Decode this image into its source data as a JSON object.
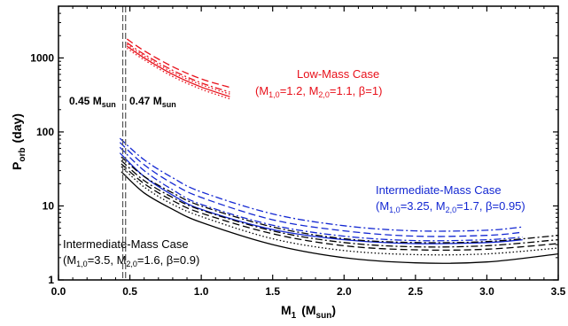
{
  "chart_data": {
    "type": "line",
    "title": "",
    "xlabel": {
      "main": "M",
      "sub": "1",
      "unit_main": "(M",
      "unit_sub": "sun",
      "unit_close": ")"
    },
    "ylabel": {
      "main": "P",
      "sub": "orb",
      "unit": "(day)"
    },
    "xlim": [
      0.0,
      3.5
    ],
    "ylim": [
      1,
      5000
    ],
    "y_scale": "log",
    "x_ticks": [
      "0.0",
      "0.5",
      "1.0",
      "1.5",
      "2.0",
      "2.5",
      "3.0",
      "3.5"
    ],
    "y_ticks": [
      {
        "value": 1,
        "label": "1"
      },
      {
        "value": 10,
        "label": "10"
      },
      {
        "value": 100,
        "label": "100"
      },
      {
        "value": 1000,
        "label": "1000"
      }
    ],
    "vlines": [
      {
        "x": 0.45,
        "label_main": "0.45 M",
        "label_sub": "sun"
      },
      {
        "x": 0.47,
        "label_main": "0.47 M",
        "label_sub": "sun"
      }
    ],
    "groups": [
      {
        "name": "Low-Mass Case",
        "color": "#e8101a",
        "params": [
          "(M",
          "1,0",
          "=1.2, M",
          "2,0",
          "=1.1, β=1)"
        ],
        "series": [
          {
            "dash": "dash",
            "x": [
              0.48,
              0.6,
              0.8,
              1.0,
              1.2
            ],
            "y": [
              1800,
              1250,
              760,
              520,
              400
            ]
          },
          {
            "dash": "dashdot",
            "x": [
              0.48,
              0.6,
              0.8,
              1.0,
              1.2
            ],
            "y": [
              1600,
              1120,
              680,
              460,
              345
            ]
          },
          {
            "dash": "dot",
            "x": [
              0.48,
              0.6,
              0.8,
              1.0,
              1.2
            ],
            "y": [
              1520,
              1060,
              640,
              435,
              325
            ]
          },
          {
            "dash": "solid",
            "x": [
              0.48,
              0.6,
              0.8,
              1.0,
              1.2
            ],
            "y": [
              1440,
              1000,
              600,
              405,
              300
            ]
          },
          {
            "dash": "dot",
            "x": [
              0.48,
              0.6,
              0.8,
              1.0,
              1.2
            ],
            "y": [
              1350,
              940,
              560,
              378,
              280
            ]
          }
        ]
      },
      {
        "name": "Intermediate-Mass Case",
        "color": "#1428d2",
        "params": [
          "(M",
          "1,0",
          "=3.25, M",
          "2,0",
          "=1.7, β=0.95)"
        ],
        "series": [
          {
            "dash": "dashdot",
            "x": [
              0.43,
              0.6,
              0.8,
              1.0,
              1.5,
              2.0,
              2.5,
              3.0,
              3.25
            ],
            "y": [
              82,
              42,
              24,
              15.5,
              7.8,
              5.4,
              4.6,
              4.7,
              5.2
            ]
          },
          {
            "dash": "dash",
            "x": [
              0.43,
              0.6,
              0.8,
              1.0,
              1.5,
              2.0,
              2.5,
              3.0,
              3.25
            ],
            "y": [
              72,
              36,
              20,
              13,
              6.5,
              4.6,
              3.9,
              4.0,
              4.4
            ]
          },
          {
            "dash": "dashdot",
            "x": [
              0.43,
              0.6,
              0.8,
              1.0,
              1.5,
              2.0,
              2.5,
              3.0,
              3.25
            ],
            "y": [
              62,
              30,
              16.5,
              10.5,
              5.5,
              3.9,
              3.4,
              3.5,
              3.8
            ]
          },
          {
            "dash": "solid",
            "x": [
              0.43,
              0.6,
              0.8,
              1.0,
              1.5,
              2.0,
              2.5,
              3.0,
              3.25
            ],
            "y": [
              52,
              25,
              14,
              9.0,
              4.8,
              3.5,
              3.1,
              3.2,
              3.5
            ]
          }
        ]
      },
      {
        "name": "Intermediate-Mass Case",
        "color": "#000000",
        "params": [
          "(M",
          "1,0",
          "=3.5, M",
          "2,0",
          "=1.6, β=0.9)"
        ],
        "series": [
          {
            "dash": "dashdot",
            "x": [
              0.44,
              0.6,
              0.8,
              1.0,
              1.5,
              2.0,
              2.5,
              3.0,
              3.5
            ],
            "y": [
              46,
              25,
              15,
              10,
              5.2,
              3.6,
              3.2,
              3.3,
              4.0
            ]
          },
          {
            "dash": "dashdot",
            "x": [
              0.44,
              0.6,
              0.8,
              1.0,
              1.5,
              2.0,
              2.5,
              3.0,
              3.5
            ],
            "y": [
              41,
              22,
              13,
              8.8,
              4.6,
              3.2,
              2.8,
              2.9,
              3.5
            ]
          },
          {
            "dash": "dash",
            "x": [
              0.44,
              0.6,
              0.8,
              1.0,
              1.5,
              2.0,
              2.5,
              3.0,
              3.5
            ],
            "y": [
              37,
              20,
              11.8,
              8.0,
              4.2,
              2.9,
              2.55,
              2.6,
              3.1
            ]
          },
          {
            "dash": "dot",
            "x": [
              0.44,
              0.6,
              0.8,
              1.0,
              1.5,
              2.0,
              2.5,
              3.0,
              3.5
            ],
            "y": [
              34,
              18,
              10.5,
              7.2,
              3.6,
              2.5,
              2.2,
              2.25,
              2.7
            ]
          },
          {
            "dash": "solid",
            "x": [
              0.44,
              0.6,
              0.8,
              1.0,
              1.5,
              2.0,
              2.5,
              3.0,
              3.5
            ],
            "y": [
              29,
              15,
              9,
              6,
              3.0,
              2.0,
              1.7,
              1.75,
              2.25
            ]
          }
        ]
      }
    ]
  }
}
